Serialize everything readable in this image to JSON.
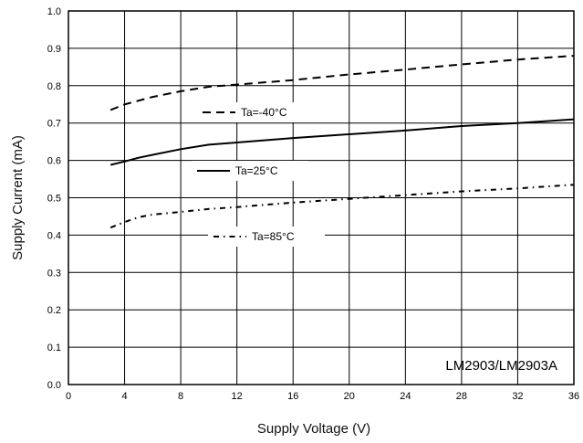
{
  "chart_data": {
    "type": "line",
    "title": "",
    "xlabel": "Supply Voltage (V)",
    "ylabel": "Supply Current (mA)",
    "xlim": [
      0,
      36
    ],
    "ylim": [
      0.0,
      1.0
    ],
    "x_ticks": [
      "0",
      "4",
      "8",
      "12",
      "16",
      "20",
      "24",
      "28",
      "32",
      "36"
    ],
    "y_ticks": [
      "0.0",
      "0.1",
      "0.2",
      "0.3",
      "0.4",
      "0.5",
      "0.6",
      "0.7",
      "0.8",
      "0.9",
      "1.0"
    ],
    "grid": true,
    "annotation": "LM2903/LM2903A",
    "series": [
      {
        "name": "Ta=-40°C",
        "style": "dashed",
        "x": [
          3,
          4,
          6,
          8,
          10,
          12,
          16,
          20,
          24,
          28,
          32,
          36
        ],
        "y": [
          0.735,
          0.75,
          0.77,
          0.785,
          0.797,
          0.803,
          0.815,
          0.83,
          0.843,
          0.857,
          0.87,
          0.88
        ]
      },
      {
        "name": "Ta=25°C",
        "style": "solid",
        "x": [
          3,
          4,
          5,
          6,
          8,
          10,
          12,
          16,
          20,
          24,
          28,
          32,
          36
        ],
        "y": [
          0.588,
          0.597,
          0.607,
          0.615,
          0.63,
          0.642,
          0.648,
          0.66,
          0.67,
          0.68,
          0.692,
          0.7,
          0.71
        ]
      },
      {
        "name": "Ta=85°C",
        "style": "dashdot",
        "x": [
          3,
          4,
          5,
          6,
          8,
          10,
          12,
          16,
          20,
          24,
          28,
          32,
          36
        ],
        "y": [
          0.42,
          0.435,
          0.448,
          0.455,
          0.462,
          0.47,
          0.475,
          0.487,
          0.497,
          0.507,
          0.517,
          0.525,
          0.535
        ]
      }
    ]
  }
}
